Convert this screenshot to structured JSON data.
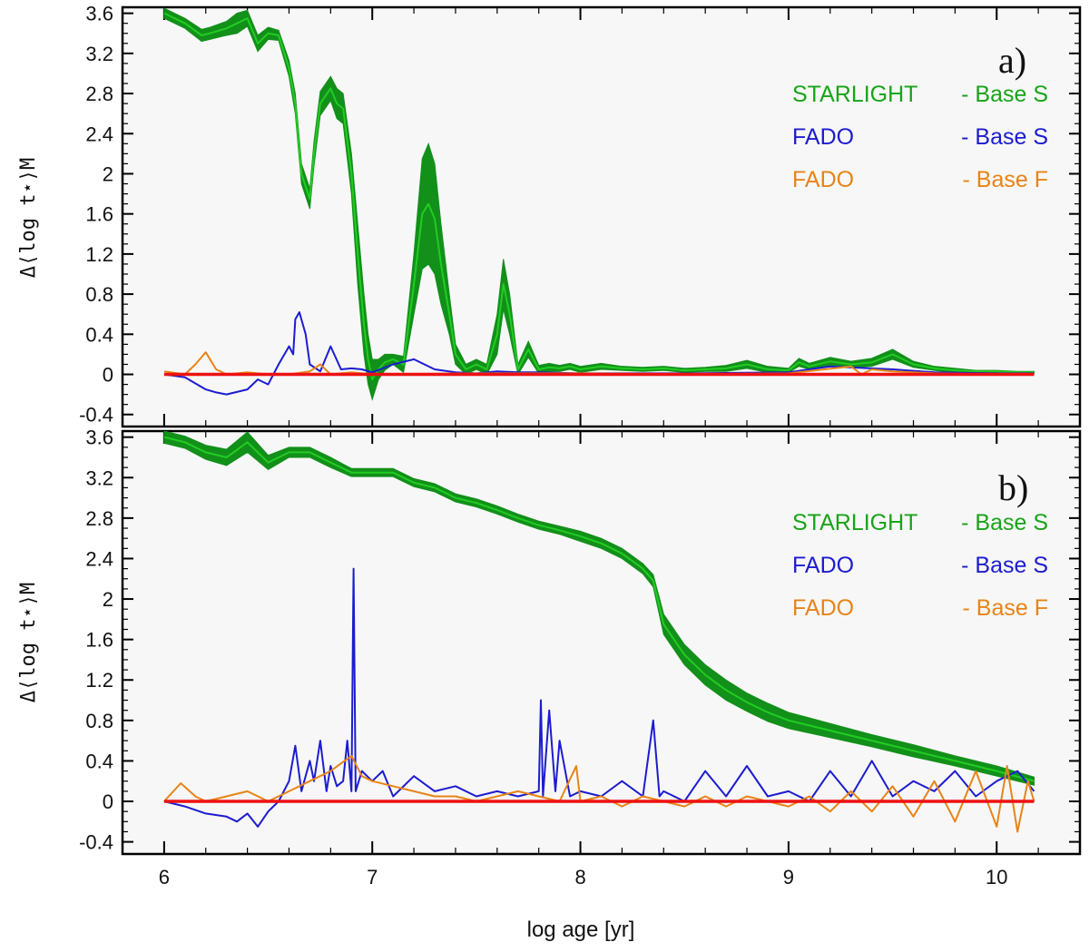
{
  "chart_data": [
    {
      "panel": "a)",
      "type": "line",
      "ylabel": "Δ⟨log t⋆⟩M",
      "xlabel": "",
      "xlim": [
        5.8,
        10.4
      ],
      "ylim": [
        -0.52,
        3.66
      ],
      "yticks": [
        "-0.4",
        "0",
        "0.4",
        "0.8",
        "1.2",
        "1.6",
        "2",
        "2.4",
        "2.8",
        "3.2",
        "3.6"
      ],
      "xticks": [],
      "legend": [
        {
          "label": "STARLIGHT",
          "suffix": "- Base S",
          "color": "#19a319"
        },
        {
          "label": "FADO",
          "suffix": "- Base S",
          "color": "#1c1cd0"
        },
        {
          "label": "FADO",
          "suffix": "- Base F",
          "color": "#e88417"
        }
      ],
      "series": [
        {
          "name": "STARLIGHT - Base S",
          "color": "#22cc22",
          "band_color": "#12901a",
          "x": [
            6.0,
            6.1,
            6.18,
            6.22,
            6.3,
            6.35,
            6.4,
            6.45,
            6.5,
            6.55,
            6.6,
            6.63,
            6.66,
            6.7,
            6.72,
            6.75,
            6.8,
            6.83,
            6.86,
            6.9,
            6.93,
            6.96,
            6.98,
            7.0,
            7.03,
            7.06,
            7.1,
            7.15,
            7.2,
            7.24,
            7.27,
            7.3,
            7.33,
            7.37,
            7.4,
            7.45,
            7.5,
            7.55,
            7.6,
            7.63,
            7.66,
            7.7,
            7.75,
            7.8,
            7.85,
            7.9,
            7.95,
            8.0,
            8.1,
            8.2,
            8.3,
            8.4,
            8.5,
            8.6,
            8.7,
            8.8,
            8.9,
            9.0,
            9.05,
            9.1,
            9.2,
            9.3,
            9.4,
            9.5,
            9.6,
            9.7,
            9.8,
            9.9,
            10.0,
            10.1,
            10.18
          ],
          "y": [
            3.6,
            3.5,
            3.38,
            3.4,
            3.45,
            3.5,
            3.55,
            3.3,
            3.4,
            3.38,
            3.05,
            2.7,
            2.0,
            1.75,
            2.2,
            2.7,
            2.85,
            2.7,
            2.65,
            2.0,
            1.2,
            0.5,
            0.15,
            -0.05,
            0.05,
            0.12,
            0.15,
            0.1,
            0.9,
            1.6,
            1.7,
            1.55,
            1.1,
            0.6,
            0.2,
            0.05,
            0.1,
            0.05,
            0.4,
            0.9,
            0.6,
            0.05,
            0.25,
            0.05,
            0.07,
            0.06,
            0.08,
            0.05,
            0.08,
            0.06,
            0.05,
            0.06,
            0.04,
            0.05,
            0.06,
            0.1,
            0.05,
            0.04,
            0.12,
            0.08,
            0.13,
            0.1,
            0.12,
            0.2,
            0.1,
            0.06,
            0.04,
            0.03,
            0.03,
            0.02,
            0.02
          ],
          "spread": [
            0.05,
            0.05,
            0.06,
            0.06,
            0.07,
            0.1,
            0.08,
            0.08,
            0.06,
            0.05,
            0.08,
            0.1,
            0.1,
            0.1,
            0.12,
            0.12,
            0.12,
            0.15,
            0.15,
            0.2,
            0.3,
            0.3,
            0.25,
            0.2,
            0.1,
            0.08,
            0.05,
            0.08,
            0.3,
            0.55,
            0.6,
            0.55,
            0.4,
            0.2,
            0.1,
            0.05,
            0.05,
            0.05,
            0.2,
            0.25,
            0.2,
            0.05,
            0.08,
            0.04,
            0.04,
            0.03,
            0.03,
            0.03,
            0.03,
            0.02,
            0.02,
            0.02,
            0.02,
            0.02,
            0.03,
            0.04,
            0.03,
            0.02,
            0.04,
            0.03,
            0.04,
            0.03,
            0.04,
            0.05,
            0.03,
            0.02,
            0.02,
            0.01,
            0.01,
            0.01,
            0.01
          ]
        },
        {
          "name": "FADO - Base S",
          "color": "#1c1cd0",
          "x": [
            6.0,
            6.1,
            6.2,
            6.25,
            6.3,
            6.4,
            6.45,
            6.5,
            6.55,
            6.6,
            6.62,
            6.63,
            6.65,
            6.68,
            6.7,
            6.75,
            6.8,
            6.85,
            6.9,
            6.95,
            7.0,
            7.1,
            7.2,
            7.3,
            7.4,
            7.5,
            7.6,
            7.7,
            7.8,
            8.0,
            8.5,
            9.0,
            9.2,
            9.5,
            9.7,
            10.0,
            10.18
          ],
          "y": [
            0.0,
            -0.03,
            -0.15,
            -0.18,
            -0.2,
            -0.15,
            -0.05,
            -0.1,
            0.1,
            0.28,
            0.2,
            0.55,
            0.62,
            0.4,
            0.1,
            0.03,
            0.28,
            0.05,
            0.06,
            0.05,
            0.02,
            0.1,
            0.15,
            0.05,
            0.02,
            0.01,
            0.03,
            0.02,
            0.02,
            0.01,
            0.01,
            0.02,
            0.08,
            0.05,
            0.02,
            0.01,
            0.01
          ]
        },
        {
          "name": "FADO - Base F",
          "color": "#e88417",
          "x": [
            6.0,
            6.1,
            6.15,
            6.2,
            6.25,
            6.3,
            6.4,
            6.5,
            6.6,
            6.7,
            6.75,
            6.8,
            6.9,
            7.0,
            7.5,
            8.0,
            8.5,
            9.0,
            9.3,
            9.35,
            9.4,
            9.5,
            9.7,
            10.0,
            10.18
          ],
          "y": [
            0.03,
            0.0,
            0.1,
            0.22,
            0.05,
            0.0,
            0.02,
            0.0,
            0.0,
            0.03,
            0.1,
            0.0,
            0.02,
            0.0,
            0.01,
            0.01,
            0.0,
            0.01,
            0.08,
            0.0,
            0.05,
            0.03,
            0.01,
            0.0,
            0.0
          ]
        },
        {
          "name": "zero",
          "color": "#ee1111",
          "x": [
            6.0,
            10.18
          ],
          "y": [
            0,
            0
          ]
        }
      ]
    },
    {
      "panel": "b)",
      "type": "line",
      "ylabel": "Δ⟨log t⋆⟩M",
      "xlabel": "log age [yr]",
      "xlim": [
        5.8,
        10.4
      ],
      "ylim": [
        -0.52,
        3.66
      ],
      "yticks": [
        "-0.4",
        "0",
        "0.4",
        "0.8",
        "1.2",
        "1.6",
        "2",
        "2.4",
        "2.8",
        "3.2",
        "3.6"
      ],
      "xticks": [
        "6",
        "7",
        "8",
        "9",
        "10"
      ],
      "legend": [
        {
          "label": "STARLIGHT",
          "suffix": "- Base S",
          "color": "#19a319"
        },
        {
          "label": "FADO",
          "suffix": "- Base S",
          "color": "#1c1cd0"
        },
        {
          "label": "FADO",
          "suffix": "- Base F",
          "color": "#e88417"
        }
      ],
      "series": [
        {
          "name": "STARLIGHT - Base S",
          "color": "#22cc22",
          "band_color": "#12901a",
          "x": [
            6.0,
            6.1,
            6.2,
            6.3,
            6.4,
            6.5,
            6.6,
            6.7,
            6.8,
            6.9,
            7.0,
            7.1,
            7.2,
            7.3,
            7.4,
            7.5,
            7.6,
            7.7,
            7.8,
            7.9,
            8.0,
            8.1,
            8.2,
            8.3,
            8.35,
            8.4,
            8.5,
            8.6,
            8.7,
            8.8,
            8.9,
            9.0,
            9.2,
            9.4,
            9.6,
            9.8,
            10.0,
            10.18
          ],
          "y": [
            3.6,
            3.55,
            3.45,
            3.4,
            3.55,
            3.35,
            3.45,
            3.45,
            3.35,
            3.25,
            3.25,
            3.25,
            3.15,
            3.1,
            3.0,
            2.95,
            2.88,
            2.8,
            2.73,
            2.68,
            2.62,
            2.55,
            2.45,
            2.3,
            2.18,
            1.75,
            1.45,
            1.25,
            1.1,
            0.98,
            0.88,
            0.8,
            0.7,
            0.6,
            0.5,
            0.4,
            0.3,
            0.2
          ],
          "spread": [
            0.06,
            0.06,
            0.07,
            0.08,
            0.1,
            0.07,
            0.05,
            0.05,
            0.05,
            0.04,
            0.04,
            0.04,
            0.04,
            0.04,
            0.04,
            0.04,
            0.04,
            0.04,
            0.04,
            0.04,
            0.05,
            0.05,
            0.05,
            0.05,
            0.06,
            0.1,
            0.1,
            0.1,
            0.1,
            0.09,
            0.09,
            0.08,
            0.07,
            0.06,
            0.06,
            0.05,
            0.05,
            0.04
          ]
        },
        {
          "name": "FADO - Base S",
          "color": "#1c1cd0",
          "x": [
            6.0,
            6.1,
            6.2,
            6.3,
            6.35,
            6.4,
            6.45,
            6.5,
            6.55,
            6.6,
            6.63,
            6.66,
            6.7,
            6.72,
            6.75,
            6.78,
            6.8,
            6.83,
            6.86,
            6.88,
            6.9,
            6.91,
            6.92,
            6.95,
            7.0,
            7.05,
            7.1,
            7.2,
            7.3,
            7.4,
            7.5,
            7.6,
            7.7,
            7.8,
            7.81,
            7.82,
            7.85,
            7.88,
            7.9,
            7.95,
            8.0,
            8.1,
            8.2,
            8.3,
            8.35,
            8.38,
            8.4,
            8.5,
            8.6,
            8.7,
            8.8,
            8.9,
            9.0,
            9.1,
            9.2,
            9.3,
            9.4,
            9.5,
            9.6,
            9.7,
            9.8,
            9.9,
            10.0,
            10.1,
            10.18
          ],
          "y": [
            0.0,
            -0.05,
            -0.12,
            -0.15,
            -0.2,
            -0.12,
            -0.25,
            -0.1,
            0.0,
            0.2,
            0.55,
            0.1,
            0.4,
            0.2,
            0.6,
            0.1,
            0.35,
            0.15,
            0.2,
            0.6,
            0.1,
            2.3,
            0.1,
            0.3,
            0.2,
            0.3,
            0.05,
            0.25,
            0.1,
            0.15,
            0.05,
            0.1,
            0.05,
            0.1,
            1.0,
            0.05,
            0.9,
            0.1,
            0.6,
            0.05,
            0.1,
            0.05,
            0.2,
            0.05,
            0.8,
            0.05,
            0.1,
            0.0,
            0.3,
            0.05,
            0.35,
            0.05,
            0.1,
            0.0,
            0.3,
            0.05,
            0.4,
            0.05,
            0.2,
            0.1,
            0.3,
            0.05,
            0.2,
            0.3,
            0.1
          ]
        },
        {
          "name": "FADO - Base F",
          "color": "#e88417",
          "x": [
            6.0,
            6.08,
            6.15,
            6.2,
            6.3,
            6.4,
            6.5,
            6.6,
            6.7,
            6.8,
            6.9,
            6.95,
            7.0,
            7.1,
            7.2,
            7.3,
            7.4,
            7.5,
            7.6,
            7.7,
            7.8,
            7.9,
            7.98,
            8.0,
            8.1,
            8.2,
            8.3,
            8.4,
            8.5,
            8.6,
            8.7,
            8.8,
            8.9,
            9.0,
            9.1,
            9.2,
            9.3,
            9.4,
            9.5,
            9.6,
            9.7,
            9.8,
            9.9,
            10.0,
            10.05,
            10.1,
            10.15,
            10.18
          ],
          "y": [
            0.0,
            0.18,
            0.05,
            0.0,
            0.05,
            0.1,
            0.0,
            0.1,
            0.2,
            0.3,
            0.45,
            0.25,
            0.2,
            0.15,
            0.1,
            0.05,
            0.05,
            0.0,
            0.05,
            0.1,
            0.05,
            0.0,
            0.35,
            0.0,
            0.05,
            -0.05,
            0.05,
            0.0,
            -0.05,
            0.05,
            -0.05,
            0.05,
            0.0,
            -0.05,
            0.05,
            -0.1,
            0.1,
            -0.1,
            0.15,
            -0.15,
            0.2,
            -0.2,
            0.3,
            -0.25,
            0.35,
            -0.3,
            0.2,
            0.0
          ]
        },
        {
          "name": "zero",
          "color": "#ee1111",
          "x": [
            6.0,
            10.18
          ],
          "y": [
            0,
            0
          ]
        }
      ]
    }
  ]
}
